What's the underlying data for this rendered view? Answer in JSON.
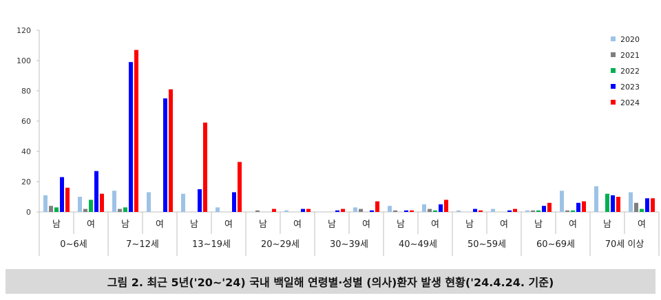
{
  "chart_data": {
    "type": "bar",
    "ylim": [
      0,
      120
    ],
    "yticks": [
      0,
      20,
      40,
      60,
      80,
      100,
      120
    ],
    "grid": false,
    "legend_placement": "right",
    "age_groups": [
      "0~6세",
      "7~12세",
      "13~19세",
      "20~29세",
      "30~39세",
      "40~49세",
      "50~59세",
      "60~69세",
      "70세 이상"
    ],
    "sexes": [
      "남",
      "여"
    ],
    "categories": [
      "0~6세 남",
      "0~6세 여",
      "7~12세 남",
      "7~12세 여",
      "13~19세 남",
      "13~19세 여",
      "20~29세 남",
      "20~29세 여",
      "30~39세 남",
      "30~39세 여",
      "40~49세 남",
      "40~49세 여",
      "50~59세 남",
      "50~59세 여",
      "60~69세 남",
      "60~69세 여",
      "70세 이상 남",
      "70세 이상 여"
    ],
    "series": [
      {
        "name": "2020",
        "color": "#9dc3e6",
        "values": [
          11,
          10,
          14,
          13,
          12,
          3,
          0,
          1,
          0,
          3,
          4,
          5,
          1,
          2,
          1,
          14,
          17,
          13
        ]
      },
      {
        "name": "2021",
        "color": "#7f7f7f",
        "values": [
          4,
          2,
          2,
          0,
          0,
          0,
          1,
          0,
          0,
          2,
          1,
          2,
          0,
          0,
          1,
          1,
          0,
          6
        ]
      },
      {
        "name": "2022",
        "color": "#00b050",
        "values": [
          3,
          8,
          3,
          0,
          0,
          0,
          0,
          0,
          0,
          0,
          0,
          1,
          0,
          0,
          1,
          1,
          12,
          2
        ]
      },
      {
        "name": "2023",
        "color": "#0000ff",
        "values": [
          23,
          27,
          99,
          75,
          15,
          13,
          0,
          2,
          1,
          1,
          1,
          5,
          2,
          1,
          4,
          6,
          11,
          9
        ]
      },
      {
        "name": "2024",
        "color": "#ff0000",
        "values": [
          16,
          12,
          107,
          81,
          59,
          33,
          2,
          2,
          2,
          7,
          1,
          8,
          1,
          2,
          6,
          7,
          10,
          9
        ]
      }
    ]
  },
  "caption": "그림 2. 최근 5년('20~'24) 국내 백일해 연령별·성별 (의사)환자 발생 현황('24.4.24. 기준)"
}
